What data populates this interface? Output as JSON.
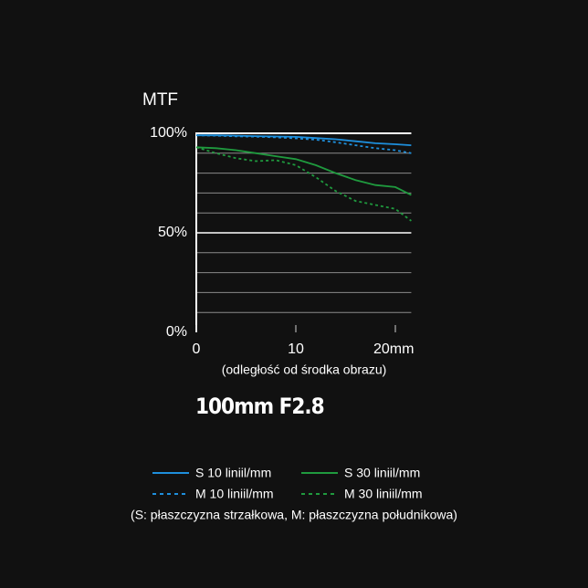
{
  "chart_data": {
    "type": "line",
    "title": "100mm F2.8",
    "y_label": "MTF",
    "x_label": "(odległość od środka obrazu)",
    "note": "(S: płaszczyzna strzałkowa, M: płaszczyzna południkowa)",
    "x": [
      0,
      2,
      4,
      6,
      8,
      10,
      12,
      14,
      16,
      18,
      20,
      21.6
    ],
    "series": [
      {
        "name": "S 10 liniil/mm",
        "color": "#1e8fdc",
        "dashed": false,
        "values": [
          99,
          99,
          98.8,
          98.6,
          98.4,
          98.2,
          97.6,
          97,
          96,
          95,
          94.5,
          94
        ]
      },
      {
        "name": "M 10 liniil/mm",
        "color": "#1e8fdc",
        "dashed": true,
        "values": [
          99,
          98.8,
          98.5,
          98.3,
          98,
          97.5,
          96.8,
          95.5,
          94,
          92.5,
          91.5,
          90
        ]
      },
      {
        "name": "S 30 liniil/mm",
        "color": "#1f9a3e",
        "dashed": false,
        "values": [
          93,
          92.5,
          91.5,
          90,
          88.5,
          87,
          84,
          80,
          76.5,
          74,
          73,
          69
        ]
      },
      {
        "name": "M 30 liniil/mm",
        "color": "#1f9a3e",
        "dashed": true,
        "values": [
          93,
          90,
          87.5,
          86,
          86.5,
          84,
          78,
          71,
          66,
          64,
          62,
          56
        ]
      }
    ],
    "xlim": [
      0,
      21.6
    ],
    "ylim": [
      0,
      100
    ],
    "xticks": [
      0,
      10,
      {
        "value": 20,
        "label": "20mm"
      }
    ],
    "yticks": [
      {
        "value": 0,
        "label": "0%"
      },
      {
        "value": 50,
        "label": "50%"
      },
      {
        "value": 100,
        "label": "100%"
      }
    ],
    "minor_yticks": [
      10,
      20,
      30,
      40,
      60,
      70,
      80,
      90
    ],
    "grid": true
  }
}
